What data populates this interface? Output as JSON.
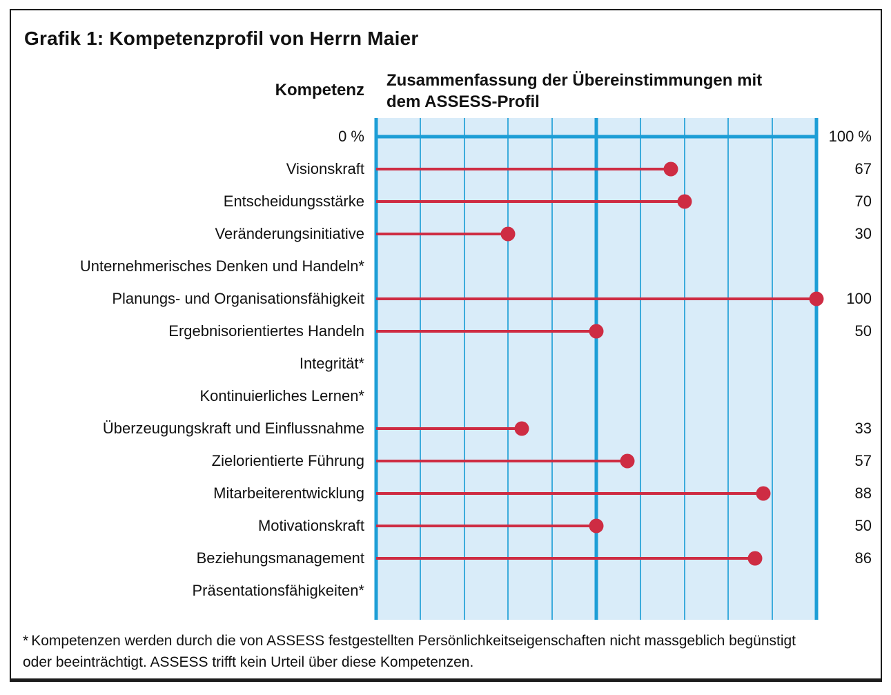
{
  "page": {
    "title": "Grafik 1: Kompetenzprofil von Herrn Maier",
    "col_header_left": "Kompetenz",
    "col_header_right_lines": [
      "Zusammenfassung der Übereinstimmungen mit",
      "dem ASSESS-Profil"
    ],
    "scale_left_label": "0 %",
    "scale_right_label": "100 %",
    "footnote": {
      "marker": "*",
      "lines": [
        "Kompetenzen werden durch die von ASSESS festgestellten Persönlichkeitseigenschaften nicht massgeblich begünstigt",
        "oder beeinträchtigt. ASSESS trifft kein Urteil über diese Kompetenzen."
      ]
    }
  },
  "colors": {
    "accent-red": "#ce2c43",
    "grid-strong": "#1d9ed6",
    "grid-light": "#3cabdc",
    "chart-bg": "#d9ecf9",
    "frame": "#1c1c1c"
  },
  "chart_data": {
    "type": "bar",
    "variant": "horizontal-lollipop",
    "title": "Grafik 1: Kompetenzprofil von Herrn Maier",
    "xlabel": "Zusammenfassung der Übereinstimmungen mit dem ASSESS-Profil",
    "ylabel": "Kompetenz",
    "unit": "%",
    "xlim": [
      0,
      100
    ],
    "grid_interval": 10,
    "emphasized_gridlines": [
      0,
      50,
      100
    ],
    "grid": true,
    "categories": [
      "Visionskraft",
      "Entscheidungsstärke",
      "Veränderungsinitiative",
      "Unternehmerisches Denken und Handeln*",
      "Planungs- und Organisationsfähigkeit",
      "Ergebnisorientiertes Handeln",
      "Integrität*",
      "Kontinuierliches Lernen*",
      "Überzeugungskraft und Einflussnahme",
      "Zielorientierte Führung",
      "Mitarbeiterentwicklung",
      "Motivationskraft",
      "Beziehungsmanagement",
      "Präsentationsfähigkeiten*"
    ],
    "values": [
      67,
      70,
      30,
      null,
      100,
      50,
      null,
      null,
      33,
      57,
      88,
      50,
      86,
      null
    ],
    "note": "Rows marked * have no value: ASSESS makes no judgement about these competencies."
  }
}
